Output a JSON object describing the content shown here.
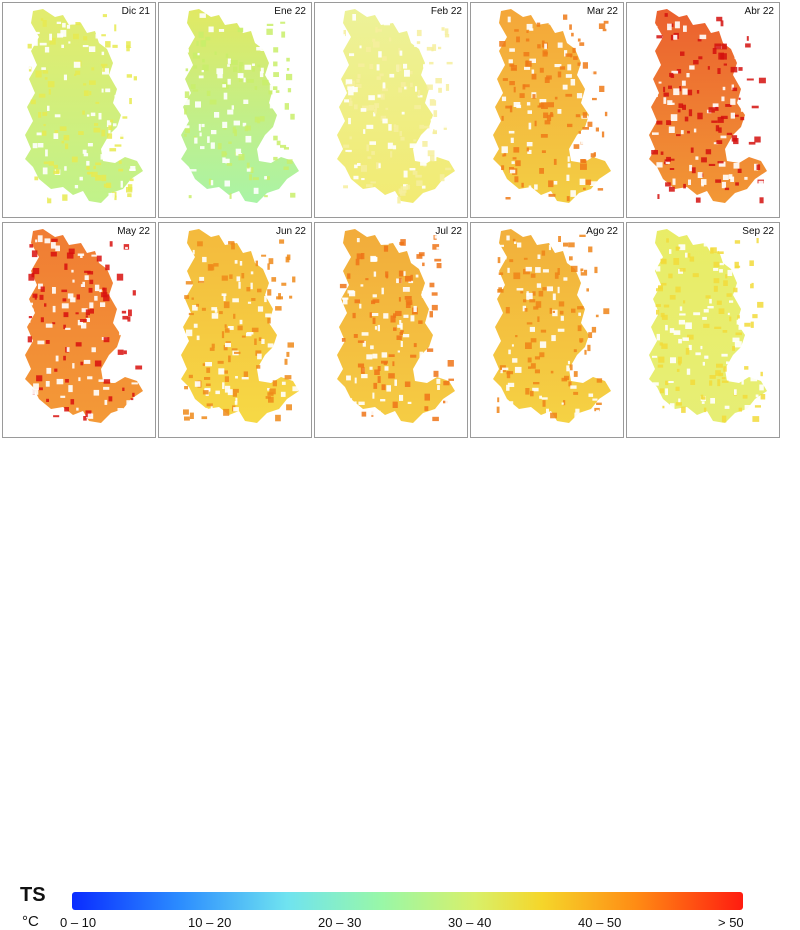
{
  "panels": [
    {
      "label": "Dic 21",
      "color_top": "#dfe95a",
      "color_bottom": "#b8f07a",
      "accent": "#e8ea50"
    },
    {
      "label": "Ene 22",
      "color_top": "#dde64e",
      "color_bottom": "#9ef29a",
      "accent": "#c9ee6a"
    },
    {
      "label": "Feb 22",
      "color_top": "#eaf08a",
      "color_bottom": "#f0e860",
      "accent": "#f6ef9e"
    },
    {
      "label": "Mar 22",
      "color_top": "#f39a1e",
      "color_bottom": "#f1c82a",
      "accent": "#ee7a18"
    },
    {
      "label": "Abr 22",
      "color_top": "#e84a12",
      "color_bottom": "#f08a1a",
      "accent": "#d4100e"
    },
    {
      "label": "May 22",
      "color_top": "#ee6a18",
      "color_bottom": "#f28c1c",
      "accent": "#d8100e"
    },
    {
      "label": "Jun 22",
      "color_top": "#f2b022",
      "color_bottom": "#f5d42c",
      "accent": "#ef8a1a"
    },
    {
      "label": "Jul 22",
      "color_top": "#f0a020",
      "color_bottom": "#f4c62a",
      "accent": "#ee7418"
    },
    {
      "label": "Ago 22",
      "color_top": "#f0a420",
      "color_bottom": "#f4cc2a",
      "accent": "#ef8418"
    },
    {
      "label": "Sep 22",
      "color_top": "#e6ea52",
      "color_bottom": "#e3ec62",
      "accent": "#f2da3a"
    }
  ],
  "legend": {
    "title": "TS",
    "unit": "°C",
    "ticks": [
      "0 – 10",
      "10 – 20",
      "20 – 30",
      "30 – 40",
      "40 – 50",
      "> 50"
    ],
    "colors": [
      "#0a2cff",
      "#2b8cff",
      "#6fe3f0",
      "#98f7a8",
      "#d8f06a",
      "#f5d62a",
      "#ff8c14",
      "#ff1c10"
    ]
  }
}
